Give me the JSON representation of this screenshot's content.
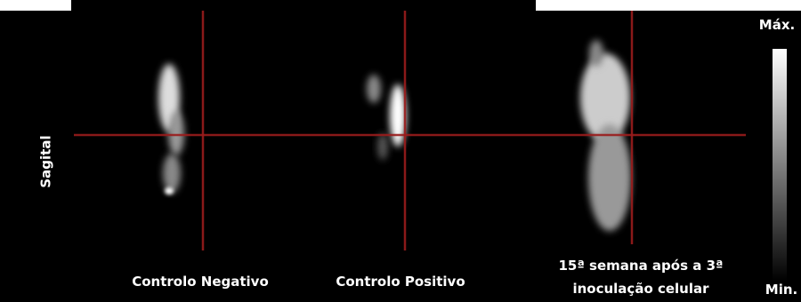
{
  "view_label": "Sagital",
  "panels": [
    {
      "caption": [
        "Controlo Negativo"
      ]
    },
    {
      "caption": [
        "Controlo Positivo"
      ]
    },
    {
      "caption": [
        "15ª semana após a 3ª",
        "inoculação celular"
      ]
    }
  ],
  "scale": {
    "max_label": "Máx.",
    "min_label": "Min."
  }
}
